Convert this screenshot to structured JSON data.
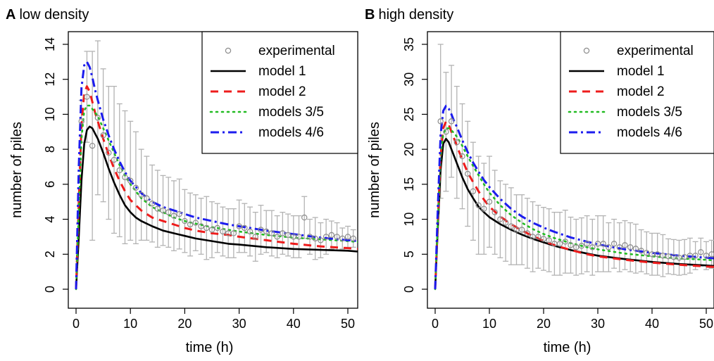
{
  "colors": {
    "experimental": "#8c8c8c",
    "errorbar": "#b3b3b3",
    "model1": "#000000",
    "model2": "#ee1c1c",
    "model35": "#22bb22",
    "model46": "#1c1cee"
  },
  "chart_data": [
    {
      "type": "line",
      "panel_letter": "A",
      "title": "low density",
      "xlabel": "time (h)",
      "ylabel": "number of piles",
      "xlim": [
        0,
        52
      ],
      "ylim": [
        0,
        14
      ],
      "xticks": [
        0,
        10,
        20,
        30,
        40,
        50
      ],
      "yticks": [
        0,
        2,
        4,
        6,
        8,
        10,
        12,
        14
      ],
      "legend": {
        "position": "top-right",
        "entries": [
          "experimental",
          "model 1",
          "model 2",
          "models 3/5",
          "models 4/6"
        ]
      },
      "experimental": {
        "x": [
          1,
          2,
          3,
          4,
          5,
          6,
          7,
          8,
          9,
          10,
          11,
          12,
          13,
          14,
          15,
          16,
          17,
          18,
          19,
          20,
          21,
          22,
          23,
          24,
          25,
          26,
          27,
          28,
          29,
          30,
          31,
          32,
          33,
          34,
          35,
          36,
          37,
          38,
          39,
          40,
          41,
          42,
          43,
          44,
          45,
          46,
          47,
          48,
          49,
          50,
          51
        ],
        "y": [
          9.6,
          11.0,
          8.2,
          9.8,
          8.8,
          7.8,
          7.4,
          6.8,
          6.4,
          6.2,
          5.8,
          5.4,
          5.2,
          4.9,
          4.6,
          4.5,
          4.4,
          4.2,
          4.3,
          3.9,
          3.7,
          3.8,
          3.6,
          3.5,
          3.4,
          3.5,
          3.3,
          3.2,
          3.2,
          3.6,
          3.5,
          3.3,
          3.0,
          3.4,
          3.3,
          3.2,
          3.0,
          3.2,
          3.1,
          3.0,
          3.0,
          4.1,
          3.0,
          2.9,
          2.8,
          3.0,
          3.1,
          3.0,
          2.9,
          3.0,
          2.9
        ],
        "err": [
          1.2,
          2.6,
          5.4,
          4.4,
          3.8,
          3.8,
          4.2,
          3.8,
          3.8,
          3.4,
          3.2,
          2.6,
          2.4,
          2.2,
          2.2,
          2.0,
          2.0,
          2.0,
          2.0,
          1.8,
          1.8,
          1.6,
          1.6,
          1.8,
          1.6,
          1.4,
          1.4,
          1.4,
          1.4,
          1.5,
          1.4,
          1.4,
          1.4,
          1.4,
          1.2,
          1.3,
          1.2,
          1.2,
          1.2,
          1.2,
          1.2,
          1.2,
          1.0,
          1.2,
          1.0,
          1.0,
          0.8,
          0.8,
          0.6,
          0.6,
          0.5
        ]
      },
      "series": [
        {
          "name": "model 1",
          "x": [
            0,
            0.5,
            1,
            1.5,
            2,
            2.5,
            3,
            3.5,
            4,
            5,
            6,
            7,
            8,
            9,
            10,
            11,
            12,
            14,
            16,
            18,
            20,
            22,
            25,
            28,
            30,
            35,
            40,
            45,
            50,
            52
          ],
          "y": [
            0,
            3.0,
            6.2,
            8.3,
            9.1,
            9.3,
            9.2,
            8.9,
            8.6,
            7.8,
            6.9,
            6.1,
            5.4,
            4.8,
            4.4,
            4.1,
            3.9,
            3.6,
            3.35,
            3.2,
            3.05,
            2.9,
            2.75,
            2.6,
            2.55,
            2.4,
            2.3,
            2.25,
            2.2,
            2.15
          ]
        },
        {
          "name": "model 2",
          "x": [
            0,
            0.5,
            1,
            1.5,
            2,
            2.5,
            3,
            3.5,
            4,
            5,
            6,
            7,
            8,
            9,
            10,
            12,
            14,
            16,
            18,
            20,
            22,
            25,
            28,
            30,
            35,
            40,
            45,
            50,
            52
          ],
          "y": [
            0,
            5.0,
            9.4,
            11.2,
            11.6,
            11.3,
            10.7,
            10.1,
            9.6,
            8.6,
            7.7,
            6.9,
            6.2,
            5.6,
            5.1,
            4.5,
            4.1,
            3.9,
            3.7,
            3.5,
            3.35,
            3.2,
            3.1,
            3.0,
            2.8,
            2.6,
            2.45,
            2.35,
            2.3
          ]
        },
        {
          "name": "models 3/5",
          "x": [
            0,
            0.5,
            1,
            1.5,
            2,
            2.5,
            3,
            3.5,
            4,
            5,
            6,
            7,
            8,
            9,
            10,
            12,
            14,
            16,
            18,
            20,
            22,
            25,
            28,
            30,
            35,
            40,
            45,
            50,
            52
          ],
          "y": [
            0,
            4.5,
            8.6,
            10.2,
            10.5,
            10.5,
            10.3,
            10.1,
            9.9,
            9.2,
            8.5,
            7.8,
            7.1,
            6.5,
            6.0,
            5.2,
            4.7,
            4.4,
            4.1,
            3.9,
            3.75,
            3.55,
            3.4,
            3.3,
            3.1,
            2.95,
            2.85,
            2.75,
            2.7
          ]
        },
        {
          "name": "models 4/6",
          "x": [
            0,
            0.5,
            1,
            1.5,
            2,
            2.5,
            3,
            3.5,
            4,
            5,
            6,
            7,
            8,
            9,
            10,
            12,
            14,
            16,
            18,
            20,
            22,
            25,
            28,
            30,
            35,
            40,
            45,
            50,
            52
          ],
          "y": [
            0,
            7.0,
            11.5,
            12.8,
            13.0,
            12.7,
            12.1,
            11.4,
            10.8,
            9.7,
            8.8,
            8.0,
            7.3,
            6.7,
            6.2,
            5.5,
            5.0,
            4.7,
            4.5,
            4.3,
            4.1,
            3.9,
            3.7,
            3.6,
            3.35,
            3.15,
            2.95,
            2.8,
            2.75
          ]
        }
      ]
    },
    {
      "type": "line",
      "panel_letter": "B",
      "title": "high density",
      "xlabel": "time (h)",
      "ylabel": "number of piles",
      "xlim": [
        0,
        52
      ],
      "ylim": [
        0,
        35
      ],
      "xticks": [
        0,
        10,
        20,
        30,
        40,
        50
      ],
      "yticks": [
        0,
        5,
        10,
        15,
        20,
        25,
        30,
        35
      ],
      "legend": {
        "position": "top-right",
        "entries": [
          "experimental",
          "model 1",
          "model 2",
          "models 3/5",
          "models 4/6"
        ]
      },
      "experimental": {
        "x": [
          1,
          2,
          3,
          4,
          5,
          6,
          7,
          8,
          9,
          10,
          11,
          12,
          13,
          14,
          15,
          16,
          17,
          18,
          19,
          20,
          21,
          22,
          23,
          24,
          25,
          26,
          27,
          28,
          29,
          30,
          31,
          32,
          33,
          34,
          35,
          36,
          37,
          38,
          39,
          40,
          41,
          42,
          43,
          44,
          45,
          46,
          47,
          48,
          49,
          50,
          51
        ],
        "y": [
          24.0,
          22.5,
          24.0,
          21.0,
          19.0,
          16.5,
          14.0,
          12.0,
          11.5,
          12.5,
          11.0,
          10.0,
          9.5,
          9.0,
          8.5,
          8.5,
          8.0,
          7.5,
          7.5,
          7.2,
          7.0,
          6.5,
          6.5,
          6.8,
          6.3,
          6.0,
          6.2,
          6.5,
          6.0,
          6.5,
          6.5,
          6.0,
          6.5,
          6.0,
          6.3,
          6.0,
          5.8,
          5.5,
          5.2,
          5.0,
          5.0,
          4.8,
          4.7,
          4.6,
          4.5,
          4.6,
          4.8,
          4.8,
          5.3,
          4.8,
          5.0
        ],
        "err": [
          11.0,
          8.5,
          8.0,
          8.0,
          7.5,
          7.5,
          7.0,
          7.0,
          6.5,
          6.5,
          6.0,
          5.5,
          5.5,
          5.5,
          5.0,
          5.0,
          5.0,
          5.0,
          4.5,
          4.5,
          4.5,
          4.5,
          4.5,
          4.5,
          4.0,
          4.0,
          4.0,
          4.0,
          4.0,
          4.0,
          4.0,
          3.5,
          3.5,
          3.5,
          3.5,
          3.5,
          3.5,
          3.0,
          3.0,
          3.0,
          3.0,
          3.0,
          2.5,
          2.5,
          2.5,
          2.5,
          2.5,
          2.0,
          2.0,
          2.0,
          2.0
        ]
      },
      "series": [
        {
          "name": "model 1",
          "x": [
            0,
            0.5,
            1,
            1.5,
            2,
            2.5,
            3,
            3.5,
            4,
            5,
            6,
            7,
            8,
            9,
            10,
            12,
            14,
            16,
            18,
            20,
            22,
            25,
            28,
            30,
            35,
            40,
            45,
            50,
            52
          ],
          "y": [
            0,
            9.0,
            17.0,
            20.8,
            21.5,
            21.0,
            20.0,
            19.0,
            18.0,
            16.0,
            14.3,
            13.0,
            11.8,
            11.0,
            10.3,
            9.3,
            8.5,
            7.8,
            7.2,
            6.7,
            6.2,
            5.6,
            5.1,
            4.8,
            4.3,
            3.9,
            3.6,
            3.4,
            3.3
          ]
        },
        {
          "name": "model 2",
          "x": [
            0,
            0.5,
            1,
            1.5,
            2,
            2.5,
            3,
            3.5,
            4,
            5,
            6,
            7,
            8,
            9,
            10,
            12,
            14,
            16,
            18,
            20,
            22,
            25,
            28,
            30,
            35,
            40,
            45,
            50,
            52
          ],
          "y": [
            0,
            10.0,
            19.0,
            23.0,
            24.0,
            23.5,
            22.5,
            21.5,
            20.5,
            18.5,
            16.7,
            15.3,
            14.0,
            12.8,
            11.8,
            10.4,
            9.3,
            8.4,
            7.6,
            6.9,
            6.3,
            5.6,
            5.0,
            4.7,
            4.2,
            3.8,
            3.5,
            3.25,
            3.15
          ]
        },
        {
          "name": "models 3/5",
          "x": [
            0,
            0.5,
            1,
            1.5,
            2,
            2.5,
            3,
            3.5,
            4,
            5,
            6,
            7,
            8,
            9,
            10,
            12,
            14,
            16,
            18,
            20,
            22,
            25,
            28,
            30,
            35,
            40,
            45,
            50,
            52
          ],
          "y": [
            0,
            10.0,
            19.0,
            22.2,
            23.0,
            23.0,
            22.7,
            22.3,
            21.8,
            20.5,
            19.0,
            17.6,
            16.3,
            15.0,
            13.8,
            12.0,
            10.6,
            9.5,
            8.6,
            7.9,
            7.3,
            6.6,
            6.0,
            5.7,
            5.1,
            4.7,
            4.4,
            4.2,
            4.1
          ]
        },
        {
          "name": "models 4/6",
          "x": [
            0,
            0.5,
            1,
            1.5,
            2,
            2.5,
            3,
            3.5,
            4,
            5,
            6,
            7,
            8,
            9,
            10,
            12,
            14,
            16,
            18,
            20,
            22,
            25,
            28,
            30,
            35,
            40,
            45,
            50,
            52
          ],
          "y": [
            0,
            12.0,
            22.0,
            25.5,
            26.2,
            25.8,
            25.0,
            24.0,
            23.2,
            21.3,
            19.6,
            18.1,
            16.8,
            15.6,
            14.6,
            12.9,
            11.5,
            10.4,
            9.5,
            8.8,
            8.2,
            7.4,
            6.8,
            6.4,
            5.7,
            5.2,
            4.8,
            4.5,
            4.4
          ]
        }
      ]
    }
  ]
}
